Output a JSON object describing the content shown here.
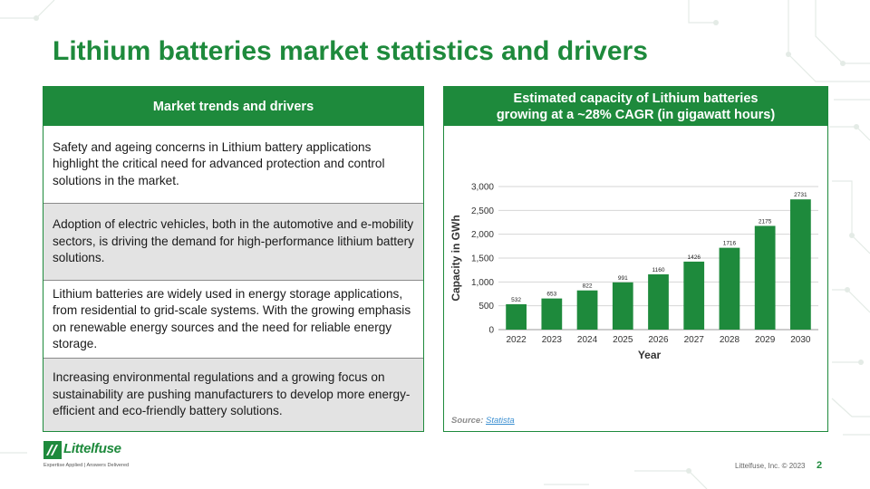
{
  "title": "Lithium batteries market statistics and drivers",
  "left_panel": {
    "header": "Market trends and drivers",
    "rows": [
      "Safety and ageing concerns in Lithium battery applications highlight the critical need for advanced protection and control solutions in the market.",
      "Adoption of electric vehicles, both in the automotive and e-mobility sectors, is driving the demand for high-performance lithium battery solutions.",
      "Lithium batteries are widely used in energy storage applications, from residential to grid-scale systems. With the growing emphasis on renewable energy sources and the need for reliable energy storage.",
      "Increasing environmental regulations and a growing focus on sustainability are pushing manufacturers to develop more energy-efficient and eco-friendly battery solutions."
    ]
  },
  "right_panel": {
    "header_line1": "Estimated capacity of Lithium batteries",
    "header_line2": "growing at a ~28% CAGR (in gigawatt hours)",
    "source_label": "Source:",
    "source_link": "Statista"
  },
  "chart_data": {
    "type": "bar",
    "categories": [
      "2022",
      "2023",
      "2024",
      "2025",
      "2026",
      "2027",
      "2028",
      "2029",
      "2030"
    ],
    "values": [
      532,
      653,
      822,
      991,
      1160,
      1426,
      1716,
      2175,
      2731
    ],
    "xlabel": "Year",
    "ylabel": "Capacity in GWh",
    "ylim": [
      0,
      3000
    ],
    "yticks": [
      0,
      500,
      1000,
      1500,
      2000,
      2500,
      3000
    ],
    "ytick_labels": [
      "0",
      "500",
      "1,000",
      "1,500",
      "2,000",
      "2,500",
      "3,000"
    ],
    "grid": true,
    "bar_color": "#1e8a3c"
  },
  "footer": {
    "logo_text": "Littelfuse",
    "tagline": "Expertise Applied | Answers Delivered",
    "copyright": "Littelfuse, Inc. © 2023",
    "page_number": "2"
  }
}
